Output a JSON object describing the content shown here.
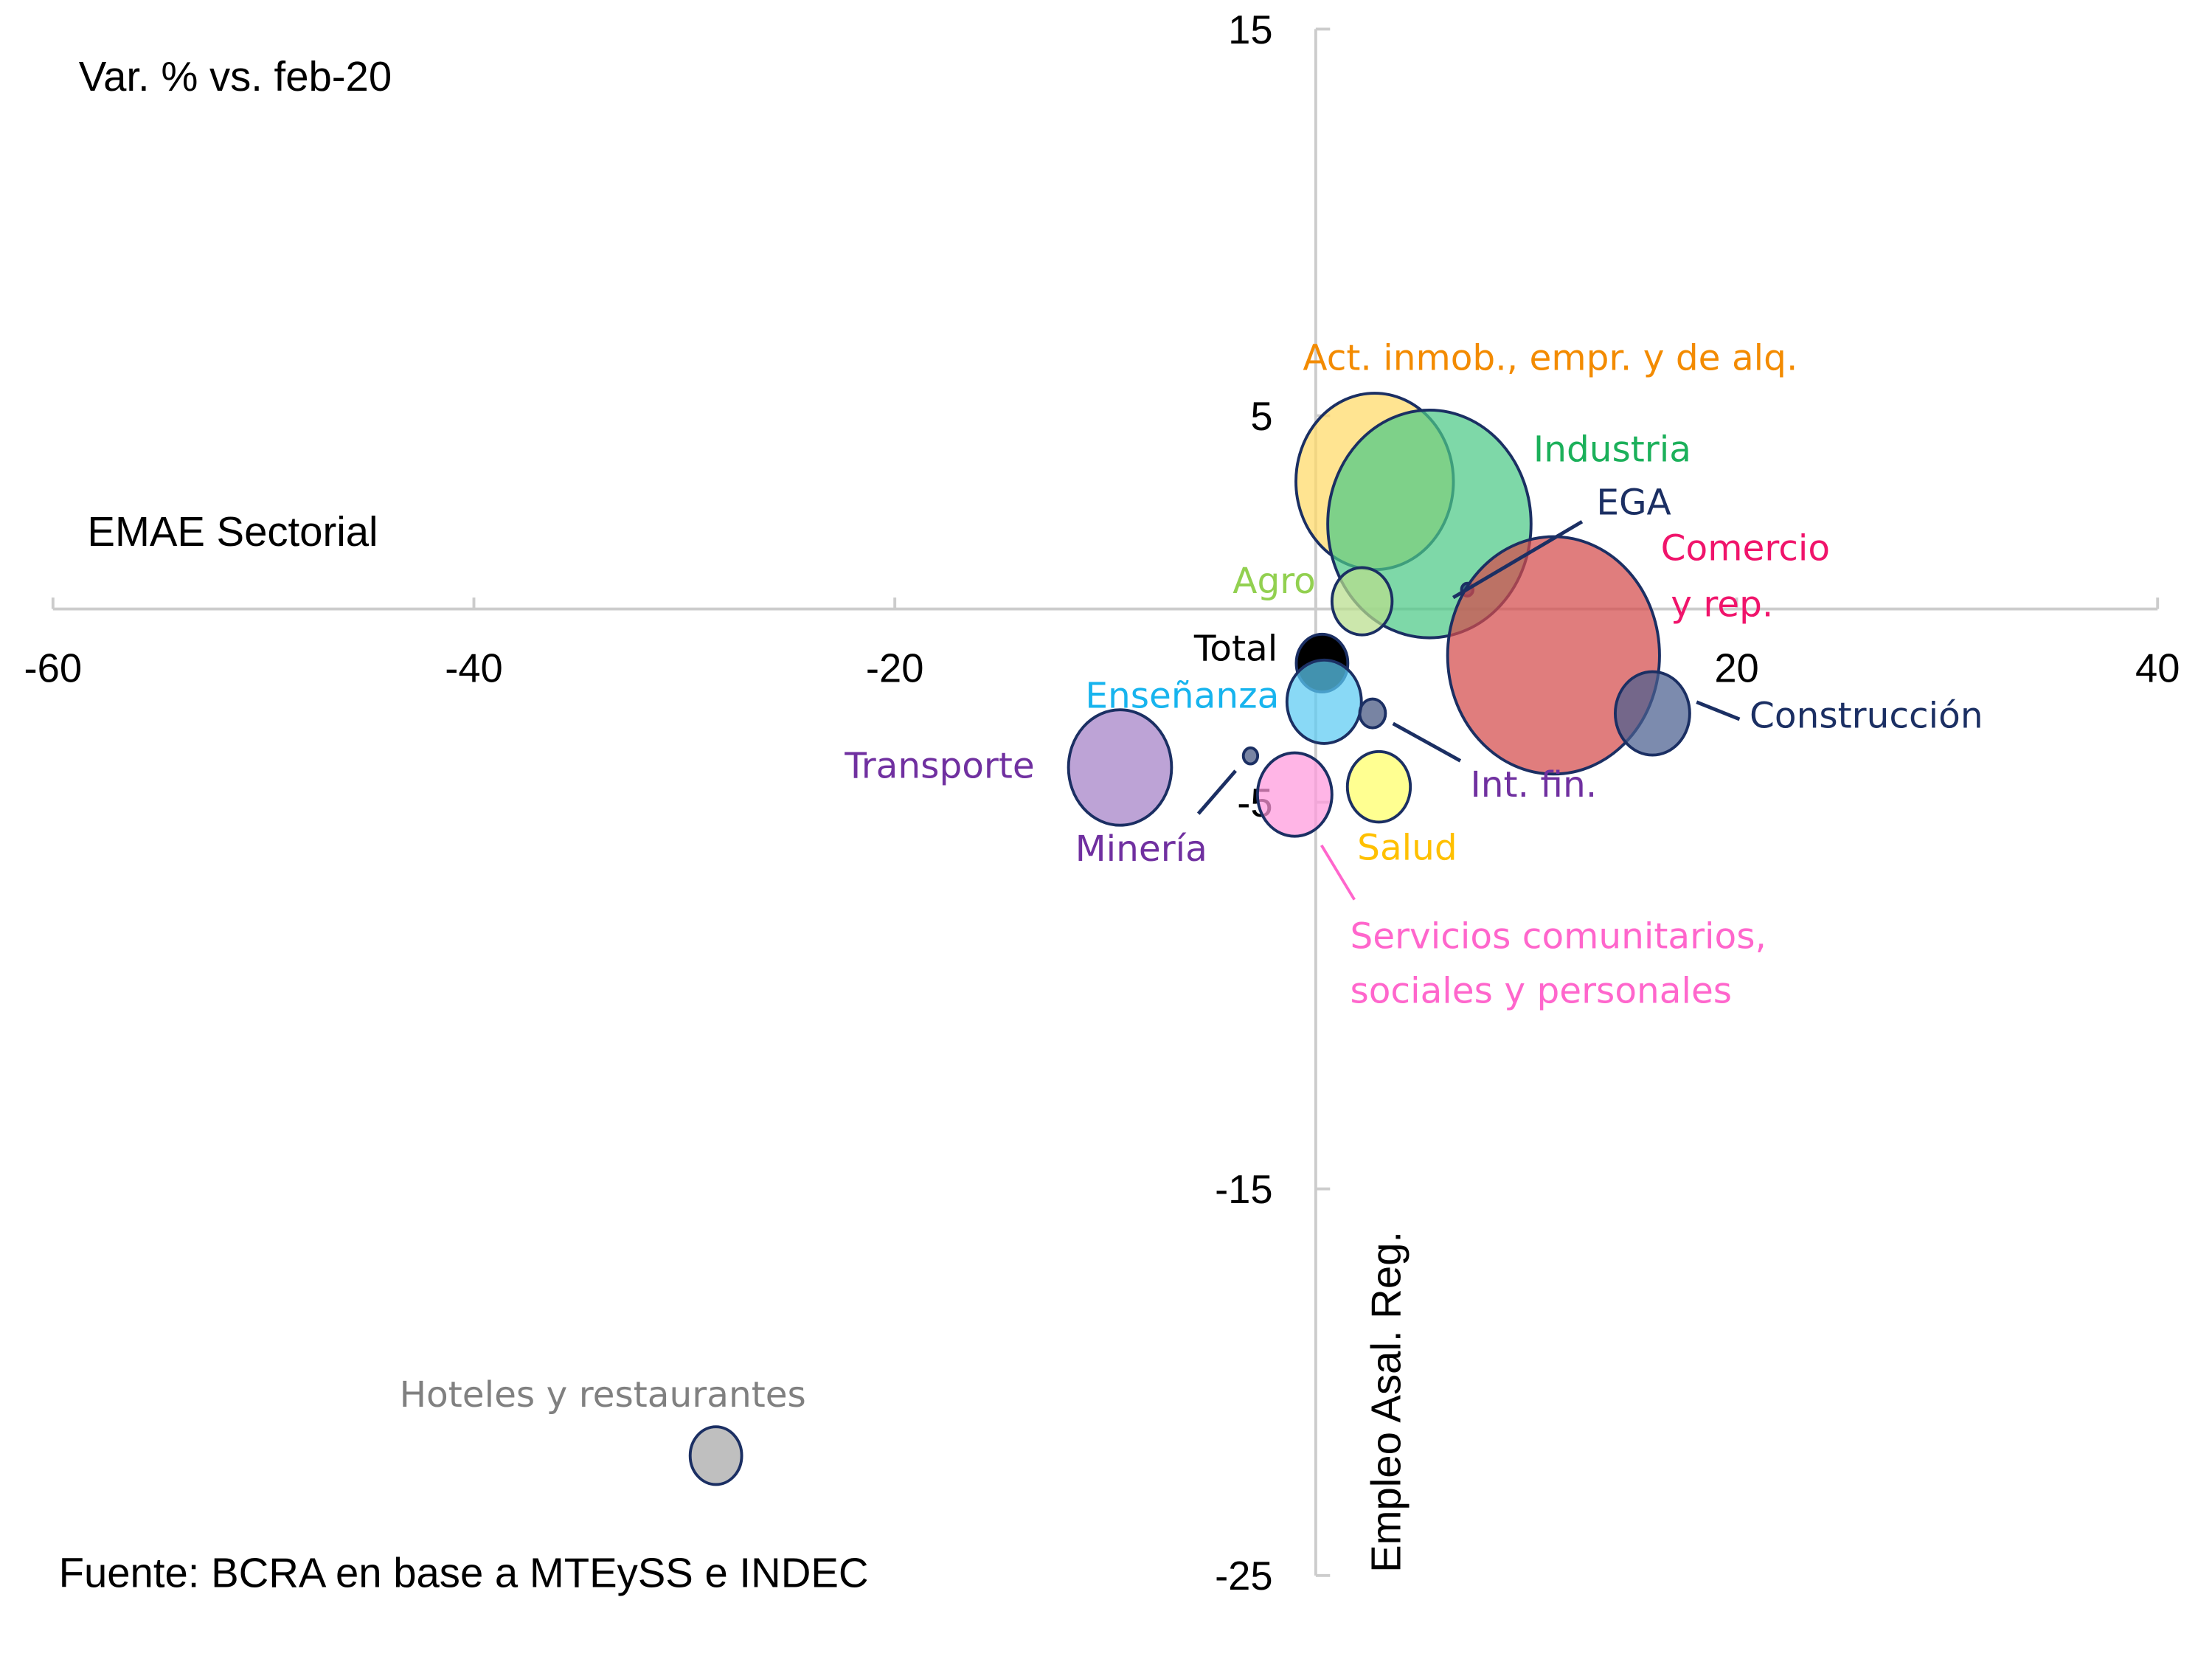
{
  "chart_data": {
    "type": "scatter",
    "subtype": "bubble",
    "title": "",
    "subtitle": "Var. % vs. feb-20",
    "xlabel": "EMAE Sectorial",
    "ylabel": "Empleo  Asal. Reg.",
    "source": "Fuente: BCRA en base a MTEySS e INDEC",
    "xlim": [
      -60,
      40
    ],
    "ylim": [
      -25,
      15
    ],
    "xticks": [
      -60,
      -40,
      -20,
      0,
      20,
      40
    ],
    "xtick_labels": [
      "-60",
      "-40",
      "-20",
      "",
      "20",
      "40"
    ],
    "yticks": [
      15,
      5,
      -5,
      -15,
      -25
    ],
    "ytick_labels": [
      "15",
      "5",
      "-5",
      "-15",
      "-25"
    ],
    "grid": false,
    "legend": "none",
    "points": [
      {
        "name": "Act. inmob., empr. y de alq.",
        "x": 2.8,
        "y": 3.3,
        "size": 55,
        "fill": "#FFD966",
        "label_color": "#F38B00"
      },
      {
        "name": "Industria",
        "x": 5.4,
        "y": 2.2,
        "size": 71,
        "fill": "#4CC986",
        "label_color": "#1BB05A"
      },
      {
        "name": "Agro",
        "x": 2.2,
        "y": 0.2,
        "size": 21,
        "fill": "#B8DE8C",
        "label_color": "#92D050"
      },
      {
        "name": "EGA",
        "x": 7.2,
        "y": 0.5,
        "size": 4,
        "fill": "#1F3A70",
        "label_color": "#1B2F63"
      },
      {
        "name": "Comercio y rep.",
        "x": 11.3,
        "y": -1.2,
        "size": 74,
        "fill": "#D44B4B",
        "label_color": "#F0146B"
      },
      {
        "name": "Construcción",
        "x": 16.0,
        "y": -2.7,
        "size": 26,
        "fill": "#4A5E8F",
        "label_color": "#1B2F63"
      },
      {
        "name": "Total",
        "x": 0.3,
        "y": -1.4,
        "size": 18,
        "fill": "#000000",
        "label_color": "#000000"
      },
      {
        "name": "Enseñanza",
        "x": 0.4,
        "y": -2.4,
        "size": 26,
        "fill": "#5CCBF2",
        "label_color": "#17B4EE"
      },
      {
        "name": "Int. fin.",
        "x": 2.7,
        "y": -2.7,
        "size": 9,
        "fill": "#44557F",
        "label_color": "#7030A0"
      },
      {
        "name": "Transporte",
        "x": -9.3,
        "y": -4.1,
        "size": 36,
        "fill": "#A47FC6",
        "label_color": "#7030A0"
      },
      {
        "name": "Minería",
        "x": -3.1,
        "y": -3.8,
        "size": 5,
        "fill": "#44557F",
        "label_color": "#7030A0"
      },
      {
        "name": "Servicios comunitarios, sociales y personales",
        "x": -1.0,
        "y": -4.8,
        "size": 26,
        "fill": "#FF99DD",
        "label_color": "#FF66CC"
      },
      {
        "name": "Salud",
        "x": 3.0,
        "y": -4.6,
        "size": 22,
        "fill": "#FFFF66",
        "label_color": "#FFC000"
      },
      {
        "name": "Hoteles y restaurantes",
        "x": -28.5,
        "y": -21.9,
        "size": 18,
        "fill": "#A6A6A6",
        "label_color": "#808080"
      }
    ],
    "labels": {
      "act": "Act. inmob., empr. y de alq.",
      "industria": "Industria",
      "agro": "Agro",
      "ega": "EGA",
      "comercio_1": "Comercio",
      "comercio_2": "y rep.",
      "construccion": "Construcción",
      "total": "Total",
      "ensenanza": "Enseñanza",
      "intfin": "Int. fin.",
      "transporte": "Transporte",
      "mineria": "Minería",
      "servicios_1": "Servicios comunitarios,",
      "servicios_2": "sociales y personales",
      "salud": "Salud",
      "hoteles": "Hoteles y restaurantes"
    },
    "outline_color": "#1B2F63",
    "axis_color": "#C8C8C8"
  }
}
